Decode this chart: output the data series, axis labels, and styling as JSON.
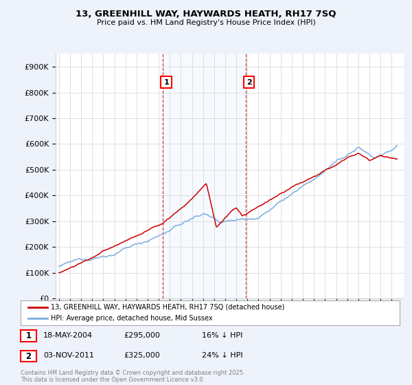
{
  "title1": "13, GREENHILL WAY, HAYWARDS HEATH, RH17 7SQ",
  "title2": "Price paid vs. HM Land Registry's House Price Index (HPI)",
  "red_label": "13, GREENHILL WAY, HAYWARDS HEATH, RH17 7SQ (detached house)",
  "blue_label": "HPI: Average price, detached house, Mid Sussex",
  "annotation1_date": "18-MAY-2004",
  "annotation1_price": "£295,000",
  "annotation1_hpi": "16% ↓ HPI",
  "annotation1_year": 2004.38,
  "annotation1_value": 295000,
  "annotation2_date": "03-NOV-2011",
  "annotation2_price": "£325,000",
  "annotation2_hpi": "24% ↓ HPI",
  "annotation2_year": 2011.84,
  "annotation2_value": 325000,
  "footer": "Contains HM Land Registry data © Crown copyright and database right 2025.\nThis data is licensed under the Open Government Licence v3.0.",
  "background_color": "#eef2fb",
  "plot_bg": "#ffffff",
  "red_color": "#cc0000",
  "blue_color": "#7aade0",
  "shade_color": "#ddeeff"
}
